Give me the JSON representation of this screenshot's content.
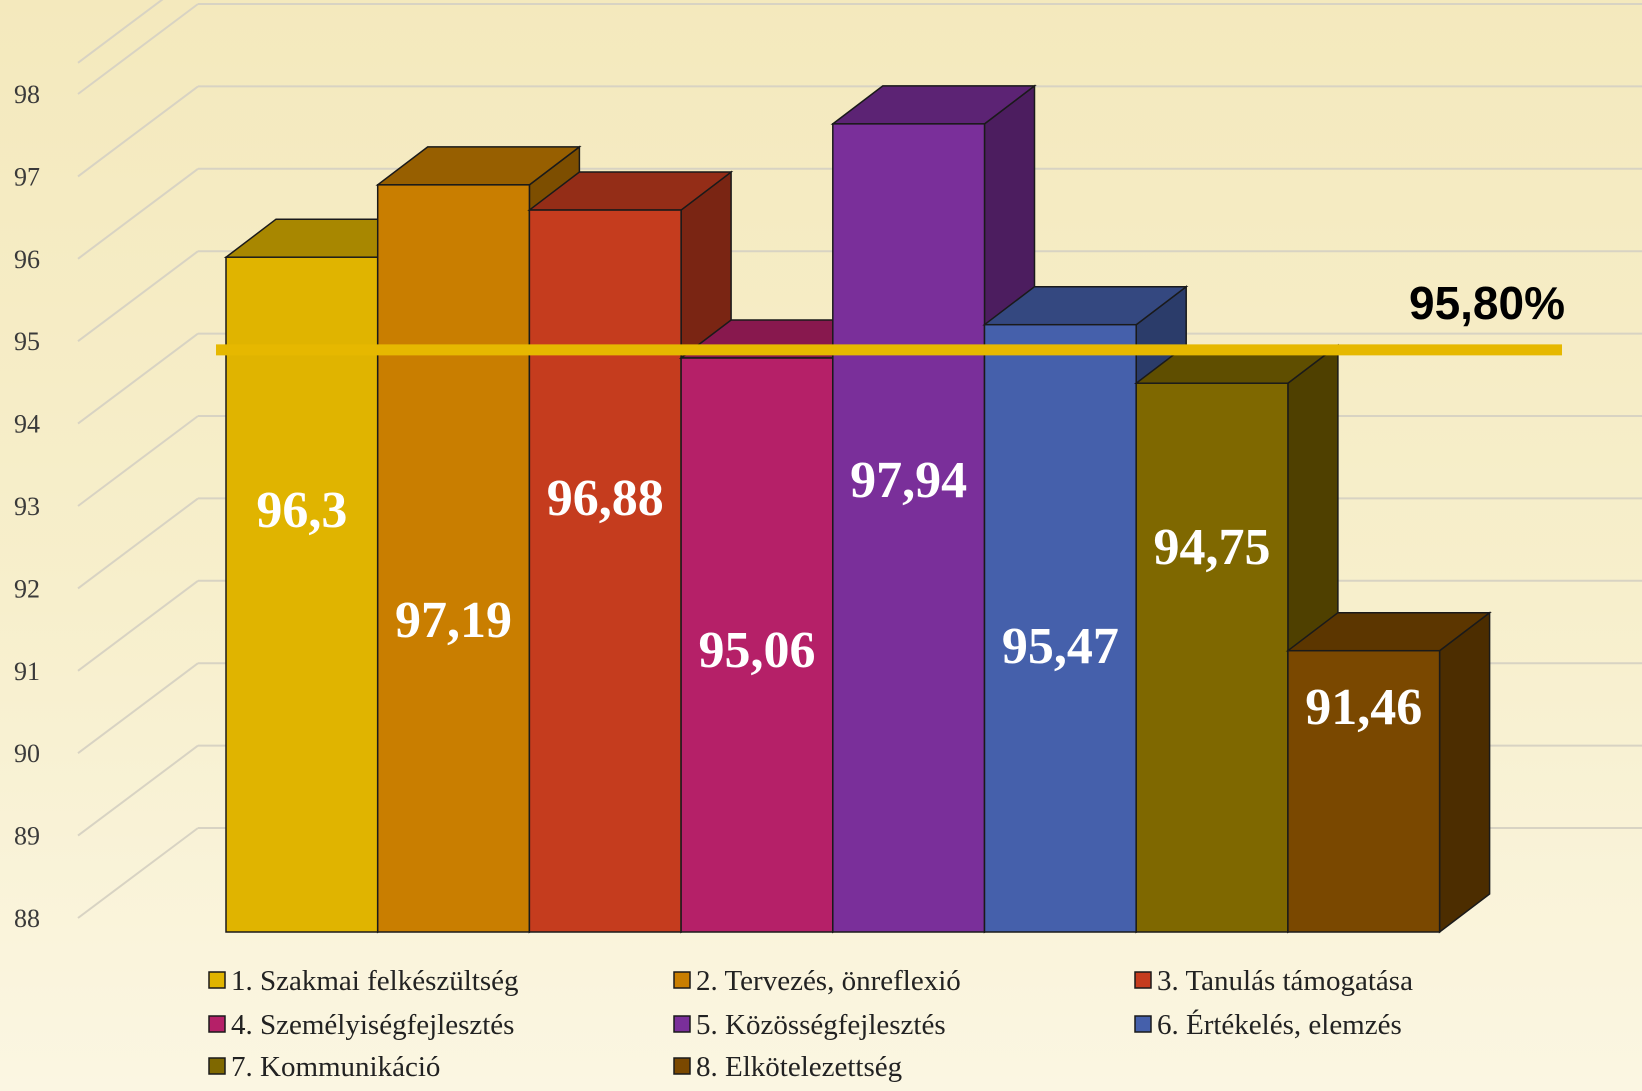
{
  "chart_data": {
    "type": "bar",
    "categories": [
      "1. Szakmai felkészültség",
      "2. Tervezés, önreflexió",
      "3. Tanulás támogatása",
      "4. Személyiségfejlesztés",
      "5. Közösségfejlesztés",
      "6. Értékelés, elemzés",
      "7. Kommunikáció",
      "8. Elkötelezettség"
    ],
    "values": [
      96.3,
      97.19,
      96.88,
      95.06,
      97.94,
      95.47,
      94.75,
      91.46
    ],
    "value_labels": [
      "96,3",
      "97,19",
      "96,88",
      "95,06",
      "97,94",
      "95,47",
      "94,75",
      "91,46"
    ],
    "colors": [
      "#e0b400",
      "#c97e00",
      "#c53c1e",
      "#b52068",
      "#7a2f9a",
      "#4560ab",
      "#7f6800",
      "#7a4800"
    ],
    "yticks": [
      "88",
      "89",
      "90",
      "91",
      "92",
      "93",
      "94",
      "95",
      "96",
      "97",
      "98"
    ],
    "ylim": [
      88,
      98.5
    ],
    "reference_line": {
      "value": 95.8,
      "label": "95,80%",
      "color": "#e6b800"
    },
    "legend_position": "bottom",
    "grid": true,
    "style": "3d-columns"
  }
}
